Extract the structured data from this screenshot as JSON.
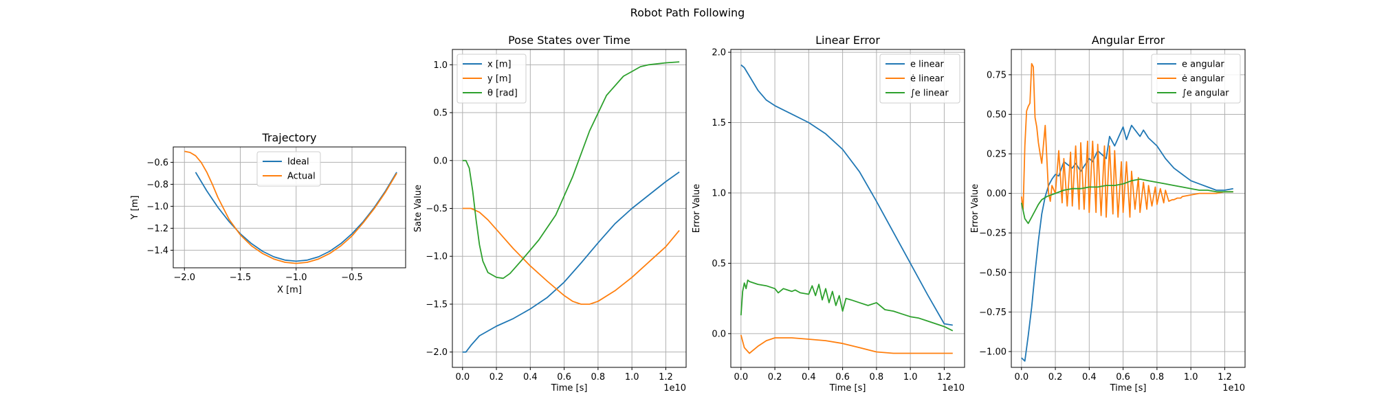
{
  "figure": {
    "suptitle": "Robot Path Following"
  },
  "colors": {
    "blue": "#1f77b4",
    "orange": "#ff7f0e",
    "green": "#2ca02c"
  },
  "chart_data": [
    {
      "id": "trajectory",
      "type": "line",
      "title": "Trajectory",
      "xlabel": "X [m]",
      "ylabel": "Y [m]",
      "xlim": [
        -2.1,
        -0.02
      ],
      "ylim": [
        -1.56,
        -0.46
      ],
      "xticks": [
        -2.0,
        -1.5,
        -1.0,
        -0.5
      ],
      "xtick_labels": [
        "−2.0",
        "−1.5",
        "−1.0",
        "−0.5"
      ],
      "yticks": [
        -1.4,
        -1.2,
        -1.0,
        -0.8,
        -0.6
      ],
      "ytick_labels": [
        "−1.4",
        "−1.2",
        "−1.0",
        "−0.8",
        "−0.6"
      ],
      "offset_text": "",
      "grid": true,
      "legend": "upper-center",
      "series": [
        {
          "name": "Ideal",
          "color": "blue",
          "x": [
            -1.9,
            -1.8,
            -1.7,
            -1.6,
            -1.5,
            -1.4,
            -1.3,
            -1.2,
            -1.1,
            -1.0,
            -0.9,
            -0.8,
            -0.7,
            -0.6,
            -0.5,
            -0.4,
            -0.3,
            -0.2,
            -0.1
          ],
          "y": [
            -0.69,
            -0.86,
            -1.01,
            -1.14,
            -1.25,
            -1.34,
            -1.41,
            -1.46,
            -1.49,
            -1.5,
            -1.49,
            -1.46,
            -1.41,
            -1.34,
            -1.25,
            -1.14,
            -1.01,
            -0.86,
            -0.69
          ]
        },
        {
          "name": "Actual",
          "color": "orange",
          "x": [
            -2.0,
            -1.95,
            -1.9,
            -1.85,
            -1.8,
            -1.75,
            -1.7,
            -1.6,
            -1.5,
            -1.4,
            -1.3,
            -1.2,
            -1.1,
            -1.0,
            -0.9,
            -0.8,
            -0.7,
            -0.6,
            -0.5,
            -0.4,
            -0.3,
            -0.2,
            -0.1
          ],
          "y": [
            -0.5,
            -0.51,
            -0.54,
            -0.6,
            -0.69,
            -0.8,
            -0.92,
            -1.12,
            -1.26,
            -1.36,
            -1.43,
            -1.48,
            -1.51,
            -1.52,
            -1.51,
            -1.48,
            -1.43,
            -1.36,
            -1.27,
            -1.15,
            -1.02,
            -0.87,
            -0.7
          ]
        }
      ]
    },
    {
      "id": "pose",
      "type": "line",
      "title": "Pose States over Time",
      "xlabel": "Time [s]",
      "ylabel": "Sate Value",
      "xlim": [
        -0.06,
        1.32
      ],
      "ylim": [
        -2.16,
        1.16
      ],
      "xticks": [
        0,
        0.2,
        0.4,
        0.6,
        0.8,
        1.0,
        1.2
      ],
      "xtick_labels": [
        "0.0",
        "0.2",
        "0.4",
        "0.6",
        "0.8",
        "1.0",
        "1.2"
      ],
      "yticks": [
        -2.0,
        -1.5,
        -1.0,
        -0.5,
        0.0,
        0.5,
        1.0
      ],
      "ytick_labels": [
        "−2.0",
        "−1.5",
        "−1.0",
        "−0.5",
        "0.0",
        "0.5",
        "1.0"
      ],
      "offset_text": "1e10",
      "grid": true,
      "legend": "upper-left",
      "series": [
        {
          "name": "x [m]",
          "color": "blue",
          "x": [
            0,
            0.02,
            0.05,
            0.1,
            0.2,
            0.3,
            0.4,
            0.5,
            0.6,
            0.7,
            0.8,
            0.9,
            1.0,
            1.1,
            1.2,
            1.28
          ],
          "y": [
            -2.0,
            -2.0,
            -1.93,
            -1.83,
            -1.73,
            -1.65,
            -1.55,
            -1.43,
            -1.27,
            -1.07,
            -0.86,
            -0.66,
            -0.5,
            -0.36,
            -0.22,
            -0.12
          ]
        },
        {
          "name": "y [m]",
          "color": "orange",
          "x": [
            0,
            0.05,
            0.1,
            0.15,
            0.2,
            0.3,
            0.4,
            0.5,
            0.6,
            0.65,
            0.7,
            0.75,
            0.8,
            0.9,
            1.0,
            1.1,
            1.2,
            1.28
          ],
          "y": [
            -0.5,
            -0.5,
            -0.54,
            -0.62,
            -0.72,
            -0.92,
            -1.1,
            -1.26,
            -1.41,
            -1.47,
            -1.5,
            -1.5,
            -1.47,
            -1.36,
            -1.22,
            -1.06,
            -0.9,
            -0.73
          ]
        },
        {
          "name": "θ [rad]",
          "color": "green",
          "x": [
            0,
            0.02,
            0.04,
            0.06,
            0.08,
            0.1,
            0.12,
            0.15,
            0.2,
            0.24,
            0.28,
            0.35,
            0.45,
            0.55,
            0.65,
            0.75,
            0.85,
            0.95,
            1.0,
            1.05,
            1.1,
            1.2,
            1.28
          ],
          "y": [
            0.0,
            0.0,
            -0.08,
            -0.32,
            -0.62,
            -0.88,
            -1.05,
            -1.17,
            -1.22,
            -1.23,
            -1.18,
            -1.04,
            -0.83,
            -0.57,
            -0.17,
            0.31,
            0.68,
            0.88,
            0.93,
            0.98,
            1.0,
            1.02,
            1.03
          ]
        }
      ]
    },
    {
      "id": "linear",
      "type": "line",
      "title": "Linear Error",
      "xlabel": "Time [s]",
      "ylabel": "Error Value",
      "xlim": [
        -0.06,
        1.32
      ],
      "ylim": [
        -0.24,
        2.02
      ],
      "xticks": [
        0,
        0.2,
        0.4,
        0.6,
        0.8,
        1.0,
        1.2
      ],
      "xtick_labels": [
        "0.0",
        "0.2",
        "0.4",
        "0.6",
        "0.8",
        "1.0",
        "1.2"
      ],
      "yticks": [
        0.0,
        0.5,
        1.0,
        1.5,
        2.0
      ],
      "ytick_labels": [
        "0.0",
        "0.5",
        "1.0",
        "1.5",
        "2.0"
      ],
      "offset_text": "1e10",
      "grid": true,
      "legend": "upper-right",
      "series": [
        {
          "name": "e linear",
          "color": "blue",
          "x": [
            0,
            0.02,
            0.05,
            0.1,
            0.15,
            0.2,
            0.3,
            0.4,
            0.5,
            0.6,
            0.7,
            0.8,
            0.9,
            1.0,
            1.1,
            1.2,
            1.25
          ],
          "y": [
            1.91,
            1.89,
            1.83,
            1.73,
            1.66,
            1.62,
            1.56,
            1.5,
            1.42,
            1.31,
            1.15,
            0.94,
            0.72,
            0.5,
            0.28,
            0.07,
            0.06
          ]
        },
        {
          "name": "ė linear",
          "color": "orange",
          "x": [
            0,
            0.02,
            0.05,
            0.1,
            0.15,
            0.2,
            0.25,
            0.3,
            0.4,
            0.5,
            0.6,
            0.7,
            0.8,
            0.9,
            1.0,
            1.1,
            1.25
          ],
          "y": [
            -0.01,
            -0.1,
            -0.14,
            -0.09,
            -0.05,
            -0.03,
            -0.03,
            -0.03,
            -0.04,
            -0.05,
            -0.07,
            -0.1,
            -0.13,
            -0.14,
            -0.14,
            -0.14,
            -0.14
          ]
        },
        {
          "name": "∫e linear",
          "color": "green",
          "x": [
            0,
            0.01,
            0.02,
            0.03,
            0.04,
            0.05,
            0.1,
            0.15,
            0.2,
            0.22,
            0.25,
            0.3,
            0.32,
            0.35,
            0.4,
            0.42,
            0.44,
            0.46,
            0.48,
            0.5,
            0.52,
            0.54,
            0.56,
            0.58,
            0.6,
            0.62,
            0.65,
            0.7,
            0.75,
            0.8,
            0.85,
            0.9,
            0.95,
            1.0,
            1.05,
            1.1,
            1.15,
            1.2,
            1.25
          ],
          "y": [
            0.13,
            0.3,
            0.36,
            0.32,
            0.38,
            0.37,
            0.35,
            0.34,
            0.32,
            0.29,
            0.32,
            0.3,
            0.31,
            0.29,
            0.28,
            0.34,
            0.27,
            0.35,
            0.24,
            0.32,
            0.22,
            0.3,
            0.2,
            0.27,
            0.16,
            0.25,
            0.24,
            0.22,
            0.2,
            0.22,
            0.17,
            0.16,
            0.14,
            0.12,
            0.11,
            0.09,
            0.07,
            0.05,
            0.02
          ]
        }
      ]
    },
    {
      "id": "angular",
      "type": "line",
      "title": "Angular Error",
      "xlabel": "Time [s]",
      "ylabel": "Error Value",
      "xlim": [
        -0.06,
        1.32
      ],
      "ylim": [
        -1.1,
        0.91
      ],
      "xticks": [
        0,
        0.2,
        0.4,
        0.6,
        0.8,
        1.0,
        1.2
      ],
      "xtick_labels": [
        "0.0",
        "0.2",
        "0.4",
        "0.6",
        "0.8",
        "1.0",
        "1.2"
      ],
      "yticks": [
        -1.0,
        -0.75,
        -0.5,
        -0.25,
        0.0,
        0.25,
        0.5,
        0.75
      ],
      "ytick_labels": [
        "−1.00",
        "−0.75",
        "−0.50",
        "−0.25",
        "0.00",
        "0.25",
        "0.50",
        "0.75"
      ],
      "offset_text": "1e10",
      "grid": true,
      "legend": "upper-right",
      "series": [
        {
          "name": "e angular",
          "color": "blue",
          "x": [
            0,
            0.02,
            0.04,
            0.06,
            0.08,
            0.1,
            0.12,
            0.14,
            0.16,
            0.18,
            0.2,
            0.22,
            0.25,
            0.3,
            0.32,
            0.35,
            0.4,
            0.42,
            0.45,
            0.5,
            0.52,
            0.55,
            0.6,
            0.62,
            0.65,
            0.7,
            0.72,
            0.75,
            0.8,
            0.85,
            0.9,
            0.95,
            1.0,
            1.05,
            1.1,
            1.15,
            1.2,
            1.25
          ],
          "y": [
            -1.04,
            -1.06,
            -0.9,
            -0.72,
            -0.5,
            -0.3,
            -0.13,
            -0.02,
            0.05,
            0.09,
            0.12,
            0.11,
            0.2,
            0.16,
            0.19,
            0.14,
            0.22,
            0.2,
            0.27,
            0.22,
            0.36,
            0.3,
            0.42,
            0.34,
            0.43,
            0.36,
            0.4,
            0.35,
            0.3,
            0.22,
            0.16,
            0.12,
            0.08,
            0.06,
            0.04,
            0.02,
            0.02,
            0.03
          ]
        },
        {
          "name": "ė angular",
          "color": "orange",
          "x": [
            0,
            0.01,
            0.02,
            0.03,
            0.04,
            0.05,
            0.06,
            0.07,
            0.08,
            0.09,
            0.1,
            0.11,
            0.12,
            0.14,
            0.16,
            0.17,
            0.18,
            0.2,
            0.22,
            0.24,
            0.25,
            0.27,
            0.29,
            0.3,
            0.32,
            0.34,
            0.35,
            0.37,
            0.39,
            0.4,
            0.42,
            0.44,
            0.45,
            0.47,
            0.49,
            0.5,
            0.52,
            0.54,
            0.55,
            0.57,
            0.59,
            0.6,
            0.62,
            0.64,
            0.65,
            0.67,
            0.69,
            0.7,
            0.72,
            0.74,
            0.75,
            0.77,
            0.79,
            0.8,
            0.82,
            0.84,
            0.85,
            0.87,
            0.89,
            0.9,
            0.92,
            0.94,
            0.95,
            1.0,
            1.05,
            1.1,
            1.15,
            1.2,
            1.25
          ],
          "y": [
            -0.02,
            -0.1,
            0.3,
            0.52,
            0.55,
            0.57,
            0.82,
            0.8,
            0.48,
            0.42,
            0.32,
            0.25,
            0.19,
            0.43,
            0.0,
            -0.05,
            0.05,
            0.0,
            0.27,
            -0.06,
            0.22,
            -0.08,
            0.26,
            -0.08,
            0.3,
            -0.1,
            0.32,
            -0.1,
            0.33,
            -0.12,
            0.33,
            -0.12,
            0.31,
            -0.14,
            0.3,
            -0.15,
            0.3,
            -0.13,
            0.27,
            -0.15,
            0.2,
            -0.12,
            0.2,
            -0.15,
            0.14,
            -0.1,
            0.1,
            -0.12,
            0.07,
            -0.1,
            0.05,
            -0.08,
            0.04,
            -0.07,
            0.03,
            -0.06,
            0.02,
            -0.05,
            -0.04,
            -0.04,
            -0.03,
            -0.03,
            -0.02,
            -0.01,
            0.0,
            0.0,
            0.0,
            0.01,
            0.01
          ]
        },
        {
          "name": "∫e angular",
          "color": "green",
          "x": [
            0,
            0.02,
            0.04,
            0.06,
            0.08,
            0.1,
            0.12,
            0.15,
            0.2,
            0.25,
            0.3,
            0.35,
            0.4,
            0.45,
            0.5,
            0.55,
            0.6,
            0.65,
            0.7,
            0.75,
            0.8,
            0.85,
            0.9,
            0.95,
            1.0,
            1.05,
            1.1,
            1.15,
            1.2,
            1.25
          ],
          "y": [
            -0.06,
            -0.16,
            -0.19,
            -0.15,
            -0.11,
            -0.07,
            -0.04,
            -0.02,
            0.0,
            0.02,
            0.03,
            0.03,
            0.04,
            0.04,
            0.05,
            0.05,
            0.06,
            0.08,
            0.09,
            0.08,
            0.07,
            0.06,
            0.05,
            0.04,
            0.03,
            0.02,
            0.02,
            0.01,
            0.01,
            0.01
          ]
        }
      ]
    }
  ]
}
